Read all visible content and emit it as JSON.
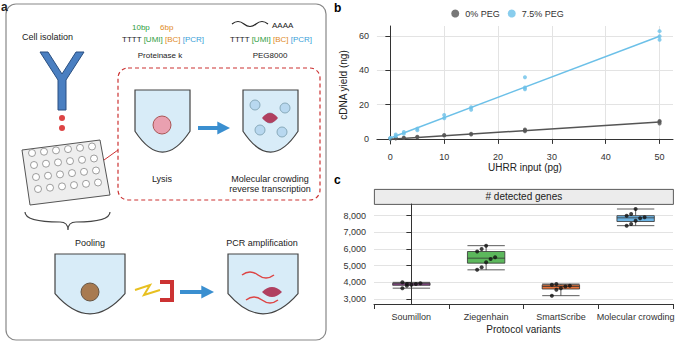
{
  "diagram": {
    "panel": "a",
    "cell_isolation": "Cell isolation",
    "lysis_well": {
      "top_labels": [
        "10bp",
        "6bp"
      ],
      "primer": [
        "TTTT",
        "[UMI]",
        "[BC]",
        "[PCR]"
      ],
      "reagent": "Proteinase k",
      "caption": [
        "Lysis"
      ]
    },
    "rt_well": {
      "top_label": "AAAA",
      "primer": [
        "TTTT",
        "[UMI]",
        "[BC]",
        "[PCR]"
      ],
      "reagent": "PEG8000",
      "caption": [
        "Molecular crowding",
        "reverse transcription"
      ]
    },
    "pooling": "Pooling",
    "pcr": "PCR amplification"
  },
  "chart_data": [
    {
      "type": "scatter",
      "annotations": [
        "b"
      ],
      "x_label": "UHRR input (pg)",
      "y_label": "cDNA yield (ng)",
      "xlim": [
        -2.5,
        52.5
      ],
      "xticks": [
        0,
        10,
        20,
        30,
        40,
        50
      ],
      "ylim": [
        -3,
        66
      ],
      "yticks": [
        0,
        20,
        40,
        60
      ],
      "grid": true,
      "legend": "top",
      "series": [
        {
          "name": "0% PEG",
          "color": "#555555",
          "x": [
            0,
            0,
            1,
            1,
            2.5,
            2.5,
            5,
            5,
            10,
            10,
            15,
            15,
            25,
            25,
            25,
            50,
            50,
            50
          ],
          "values": [
            0.1,
            0.2,
            0.3,
            0.4,
            0.5,
            0.6,
            1,
            1.2,
            2,
            2.3,
            2.5,
            3,
            4.5,
            5,
            5.5,
            9,
            10,
            10.5
          ],
          "fit": {
            "x": [
              0,
              50
            ],
            "values": [
              -0.2,
              9.9
            ]
          }
        },
        {
          "name": "7.5% PEG",
          "color": "#6cc0e8",
          "x": [
            0,
            0,
            1,
            1,
            2.5,
            2.5,
            5,
            5,
            10,
            10,
            15,
            15,
            25,
            25,
            25,
            50,
            50,
            50
          ],
          "values": [
            0.3,
            0.5,
            1.5,
            2.5,
            3,
            4,
            5,
            6,
            12,
            14,
            17,
            18.5,
            29,
            30,
            36,
            58,
            60,
            63
          ],
          "fit": {
            "x": [
              0,
              50
            ],
            "values": [
              0.5,
              60
            ]
          }
        }
      ]
    },
    {
      "type": "boxplot",
      "annotations": [
        "c"
      ],
      "title": "# detected genes",
      "x_label": "Protocol variants",
      "categories": [
        "Soumillon",
        "Ziegenhain",
        "SmartScribe",
        "Molecular crowding"
      ],
      "colors": [
        "#b34fb3",
        "#5cb85c",
        "#e8743b",
        "#6cb4e4"
      ],
      "boxes": [
        [
          3650,
          3820,
          3900,
          3950,
          4000
        ],
        [
          4750,
          5150,
          5450,
          5850,
          6200
        ],
        [
          3200,
          3600,
          3750,
          3850,
          3900
        ],
        [
          7400,
          7650,
          7870,
          8000,
          8400
        ]
      ],
      "points": [
        [
          3650,
          3800,
          3850,
          3900,
          3950,
          4000,
          3900
        ],
        [
          4750,
          4900,
          5200,
          5400,
          5500,
          5850,
          6000,
          6200
        ],
        [
          3200,
          3550,
          3650,
          3750,
          3800,
          3850,
          3900
        ],
        [
          7400,
          7500,
          7700,
          7850,
          7900,
          8000,
          8100,
          8400
        ]
      ],
      "ylim": [
        2700,
        8700
      ],
      "yticks": [
        3000,
        4000,
        5000,
        6000,
        7000,
        8000
      ],
      "grid": true
    }
  ]
}
